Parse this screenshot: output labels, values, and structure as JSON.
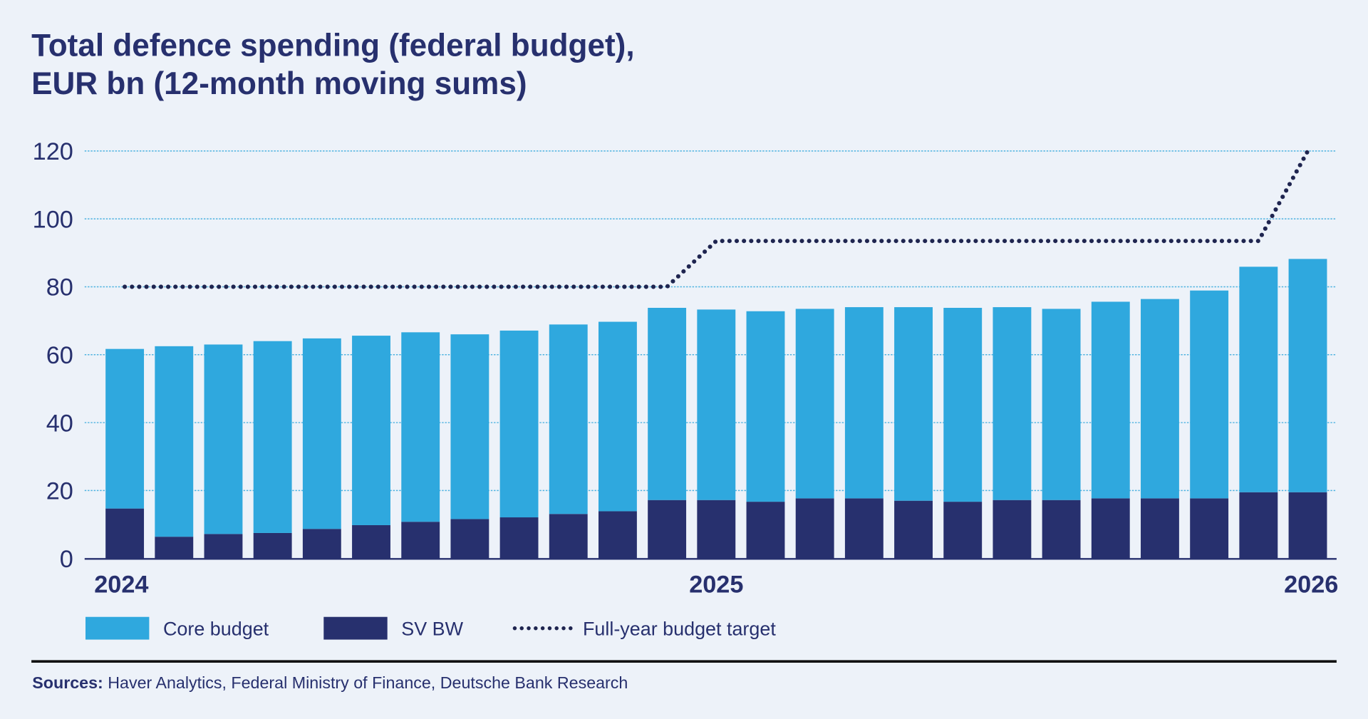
{
  "title_line1": "Total defence spending (federal budget),",
  "title_line2": "EUR bn (12-month moving sums)",
  "sources_label": "Sources:",
  "sources_text": " Haver Analytics, Federal Ministry of Finance, Deutsche Bank Research",
  "colors": {
    "core": "#2fa8de",
    "sv_bw": "#27306e",
    "target": "#1f2550",
    "grid": "#4fb3e0",
    "background": "#edf2f9"
  },
  "chart_data": {
    "type": "bar",
    "stacked": true,
    "title": "Total defence spending (federal budget), EUR bn (12-month moving sums)",
    "ylim": [
      0,
      120
    ],
    "y_ticks": [
      "0",
      "20",
      "40",
      "60",
      "80",
      "100",
      "120"
    ],
    "grid": true,
    "legend_placement": "bottom",
    "x_ticks": [
      {
        "label": "2024",
        "bar_index": 0
      },
      {
        "label": "2025",
        "bar_index": 12
      },
      {
        "label": "2026",
        "bar_index": 24
      }
    ],
    "series": [
      {
        "name": "SV BW",
        "values": [
          14.7,
          6.4,
          7.2,
          7.5,
          8.7,
          9.8,
          10.8,
          11.6,
          12.1,
          13.1,
          13.9,
          17.2,
          17.2,
          16.7,
          17.7,
          17.7,
          17.0,
          16.7,
          17.2,
          17.2,
          17.7,
          17.7,
          17.7,
          19.5,
          19.5
        ]
      },
      {
        "name": "Core budget",
        "values": [
          47.0,
          56.1,
          55.8,
          56.5,
          56.1,
          55.8,
          55.8,
          54.4,
          55.0,
          55.8,
          55.8,
          56.6,
          56.1,
          56.1,
          55.8,
          56.3,
          57.0,
          57.1,
          56.8,
          56.3,
          57.9,
          58.7,
          61.2,
          66.4,
          68.7
        ]
      },
      {
        "name": "Full-year budget target",
        "type": "line",
        "style": "dotted",
        "values": [
          80,
          80,
          80,
          80,
          80,
          80,
          80,
          80,
          80,
          80,
          80,
          80,
          93.5,
          93.5,
          93.5,
          93.5,
          93.5,
          93.5,
          93.5,
          93.5,
          93.5,
          93.5,
          93.5,
          93.5,
          120
        ]
      }
    ]
  }
}
